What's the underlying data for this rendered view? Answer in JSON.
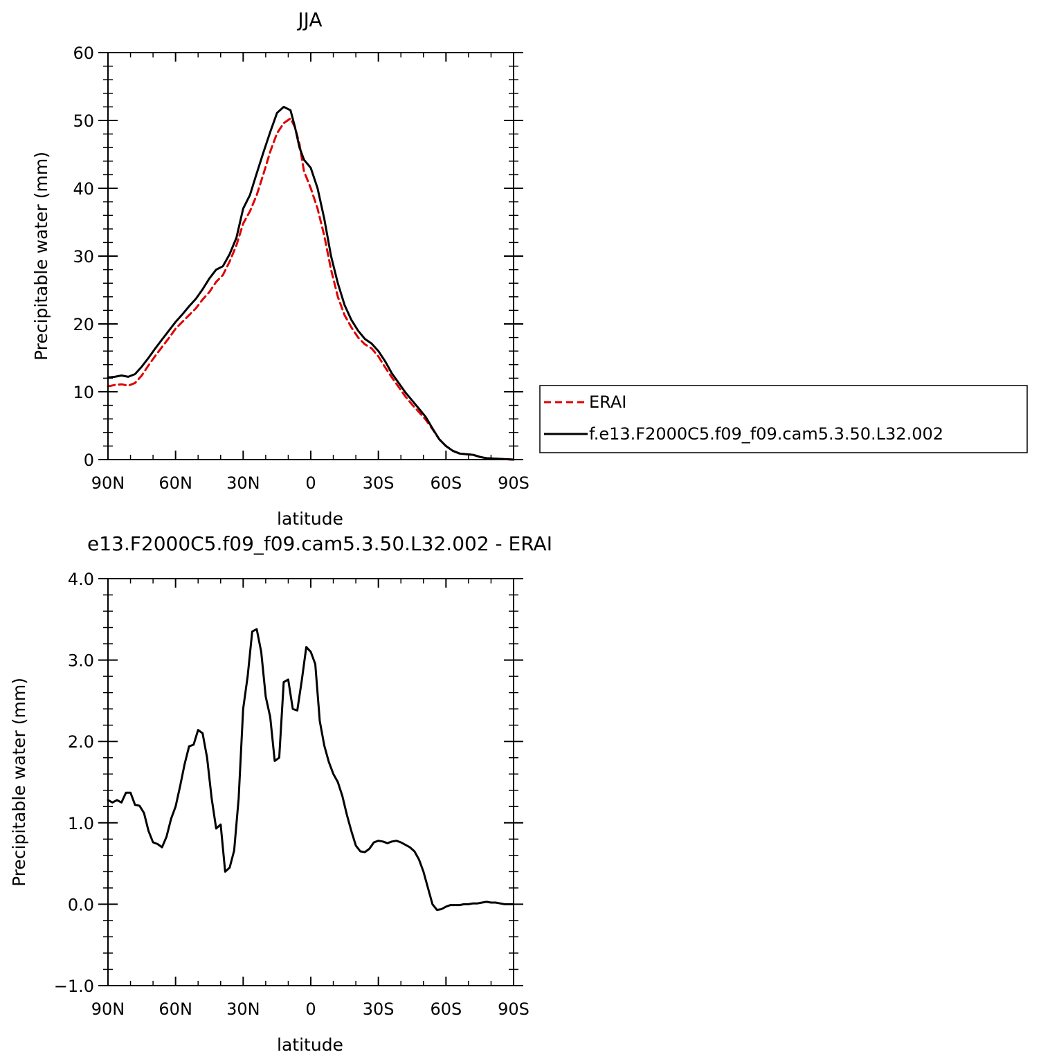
{
  "chart_data": [
    {
      "type": "line",
      "title": "JJA",
      "xlabel": "latitude",
      "ylabel": "Precipitable water (mm)",
      "xlim": [
        90,
        -90
      ],
      "ylim": [
        0,
        60
      ],
      "xticks": [
        90,
        60,
        30,
        0,
        -30,
        -60,
        -90
      ],
      "xtick_labels": [
        "90N",
        "60N",
        "30N",
        "0",
        "30S",
        "60S",
        "90S"
      ],
      "yticks": [
        0,
        10,
        20,
        30,
        40,
        50,
        60
      ],
      "ytick_labels": [
        "0",
        "10",
        "20",
        "30",
        "40",
        "50",
        "60"
      ],
      "legend": {
        "placement": "right-outside"
      },
      "series": [
        {
          "name": "ERAI",
          "color": "#e00000",
          "dash": "dashed",
          "x": [
            90,
            87,
            84,
            81,
            78,
            75,
            72,
            69,
            66,
            63,
            60,
            57,
            54,
            51,
            48,
            45,
            42,
            39,
            36,
            33,
            30,
            27,
            24,
            21,
            18,
            15,
            12,
            9,
            7,
            5,
            3,
            0,
            -3,
            -6,
            -9,
            -12,
            -15,
            -18,
            -21,
            -24,
            -27,
            -30,
            -33,
            -36,
            -39,
            -42,
            -45,
            -48,
            -51,
            -54,
            -57,
            -60,
            -63,
            -66,
            -69,
            -72,
            -75,
            -78,
            -81,
            -84,
            -87,
            -90
          ],
          "y": [
            10.8,
            11.0,
            11.1,
            10.9,
            11.3,
            12.4,
            13.9,
            15.3,
            16.6,
            17.9,
            19.3,
            20.3,
            21.3,
            22.3,
            23.6,
            24.7,
            26.2,
            27.2,
            29.2,
            31.6,
            34.8,
            36.6,
            39.0,
            42.1,
            45.4,
            48.1,
            49.6,
            50.3,
            49.0,
            46.5,
            42.5,
            40.0,
            37.0,
            33.0,
            28.0,
            24.0,
            21.3,
            19.5,
            18.0,
            17.0,
            16.4,
            15.2,
            13.6,
            12.1,
            10.7,
            9.3,
            8.1,
            7.0,
            5.9,
            4.5,
            3.0,
            2.0,
            1.3,
            0.9,
            0.8,
            0.7,
            0.4,
            0.2,
            0.15,
            0.1,
            0.05,
            0.0
          ]
        },
        {
          "name": "f.e13.F2000C5.f09_f09.cam5.3.50.L32.002",
          "color": "#000000",
          "dash": "solid",
          "x": [
            90,
            87,
            84,
            81,
            78,
            75,
            72,
            69,
            66,
            63,
            60,
            57,
            54,
            51,
            48,
            45,
            42,
            39,
            36,
            33,
            30,
            27,
            24,
            21,
            18,
            15,
            12,
            9,
            7,
            5,
            3,
            0,
            -3,
            -6,
            -9,
            -12,
            -15,
            -18,
            -21,
            -24,
            -27,
            -30,
            -33,
            -36,
            -39,
            -42,
            -45,
            -48,
            -51,
            -54,
            -57,
            -60,
            -63,
            -66,
            -69,
            -72,
            -75,
            -78,
            -81,
            -84,
            -87,
            -90
          ],
          "y": [
            12.1,
            12.2,
            12.4,
            12.2,
            12.6,
            13.7,
            15.0,
            16.4,
            17.7,
            19.0,
            20.3,
            21.4,
            22.6,
            23.7,
            25.1,
            26.7,
            28.0,
            28.5,
            30.3,
            32.7,
            37.0,
            39.0,
            42.2,
            45.3,
            48.3,
            51.1,
            52.0,
            51.5,
            49.0,
            46.0,
            44.2,
            43.0,
            40.0,
            35.5,
            30.0,
            26.0,
            22.8,
            20.6,
            19.0,
            17.8,
            17.1,
            16.0,
            14.5,
            12.7,
            11.3,
            9.9,
            8.7,
            7.5,
            6.3,
            4.6,
            3.0,
            2.0,
            1.3,
            0.9,
            0.8,
            0.7,
            0.4,
            0.2,
            0.15,
            0.1,
            0.05,
            0.0
          ]
        }
      ]
    },
    {
      "type": "line",
      "title": "e13.F2000C5.f09_f09.cam5.3.50.L32.002 - ERAI",
      "xlabel": "latitude",
      "ylabel": "Precipitable water (mm)",
      "xlim": [
        90,
        -90
      ],
      "ylim": [
        -1.0,
        4.0
      ],
      "xticks": [
        90,
        60,
        30,
        0,
        -30,
        -60,
        -90
      ],
      "xtick_labels": [
        "90N",
        "60N",
        "30N",
        "0",
        "30S",
        "60S",
        "90S"
      ],
      "yticks": [
        -1.0,
        0.0,
        1.0,
        2.0,
        3.0,
        4.0
      ],
      "ytick_labels": [
        "−1.0",
        "0.0",
        "1.0",
        "2.0",
        "3.0",
        "4.0"
      ],
      "series": [
        {
          "color": "#000000",
          "dash": "solid",
          "x": [
            90,
            88,
            86,
            84,
            82,
            80,
            78,
            76,
            74,
            72,
            70,
            68,
            66,
            64,
            62,
            60,
            58,
            56,
            54,
            52,
            50,
            48,
            46,
            44,
            42,
            40,
            38,
            36,
            34,
            32,
            30,
            28,
            26,
            24,
            22,
            20,
            18,
            16,
            14,
            12,
            10,
            8,
            6,
            4,
            2,
            0,
            -2,
            -4,
            -6,
            -8,
            -10,
            -12,
            -14,
            -16,
            -18,
            -20,
            -22,
            -24,
            -26,
            -28,
            -30,
            -32,
            -34,
            -36,
            -38,
            -40,
            -42,
            -44,
            -46,
            -48,
            -50,
            -52,
            -54,
            -56,
            -58,
            -60,
            -62,
            -64,
            -66,
            -68,
            -70,
            -72,
            -74,
            -76,
            -78,
            -80,
            -82,
            -84,
            -86,
            -88,
            -90
          ],
          "y": [
            1.28,
            1.25,
            1.28,
            1.25,
            1.37,
            1.37,
            1.22,
            1.21,
            1.12,
            0.9,
            0.76,
            0.74,
            0.7,
            0.83,
            1.05,
            1.2,
            1.45,
            1.72,
            1.94,
            1.96,
            2.14,
            2.1,
            1.8,
            1.3,
            0.93,
            0.98,
            0.4,
            0.45,
            0.66,
            1.3,
            2.4,
            2.8,
            3.35,
            3.38,
            3.1,
            2.55,
            2.3,
            1.76,
            1.8,
            2.73,
            2.76,
            2.4,
            2.38,
            2.75,
            3.16,
            3.1,
            2.95,
            2.25,
            1.95,
            1.75,
            1.6,
            1.5,
            1.33,
            1.1,
            0.9,
            0.72,
            0.65,
            0.64,
            0.68,
            0.76,
            0.78,
            0.77,
            0.75,
            0.77,
            0.78,
            0.76,
            0.73,
            0.7,
            0.65,
            0.55,
            0.4,
            0.2,
            0.0,
            -0.07,
            -0.06,
            -0.03,
            -0.01,
            -0.01,
            -0.01,
            0.0,
            0.0,
            0.01,
            0.01,
            0.02,
            0.03,
            0.02,
            0.02,
            0.01,
            0.0,
            0.0,
            0.0
          ]
        }
      ]
    }
  ]
}
